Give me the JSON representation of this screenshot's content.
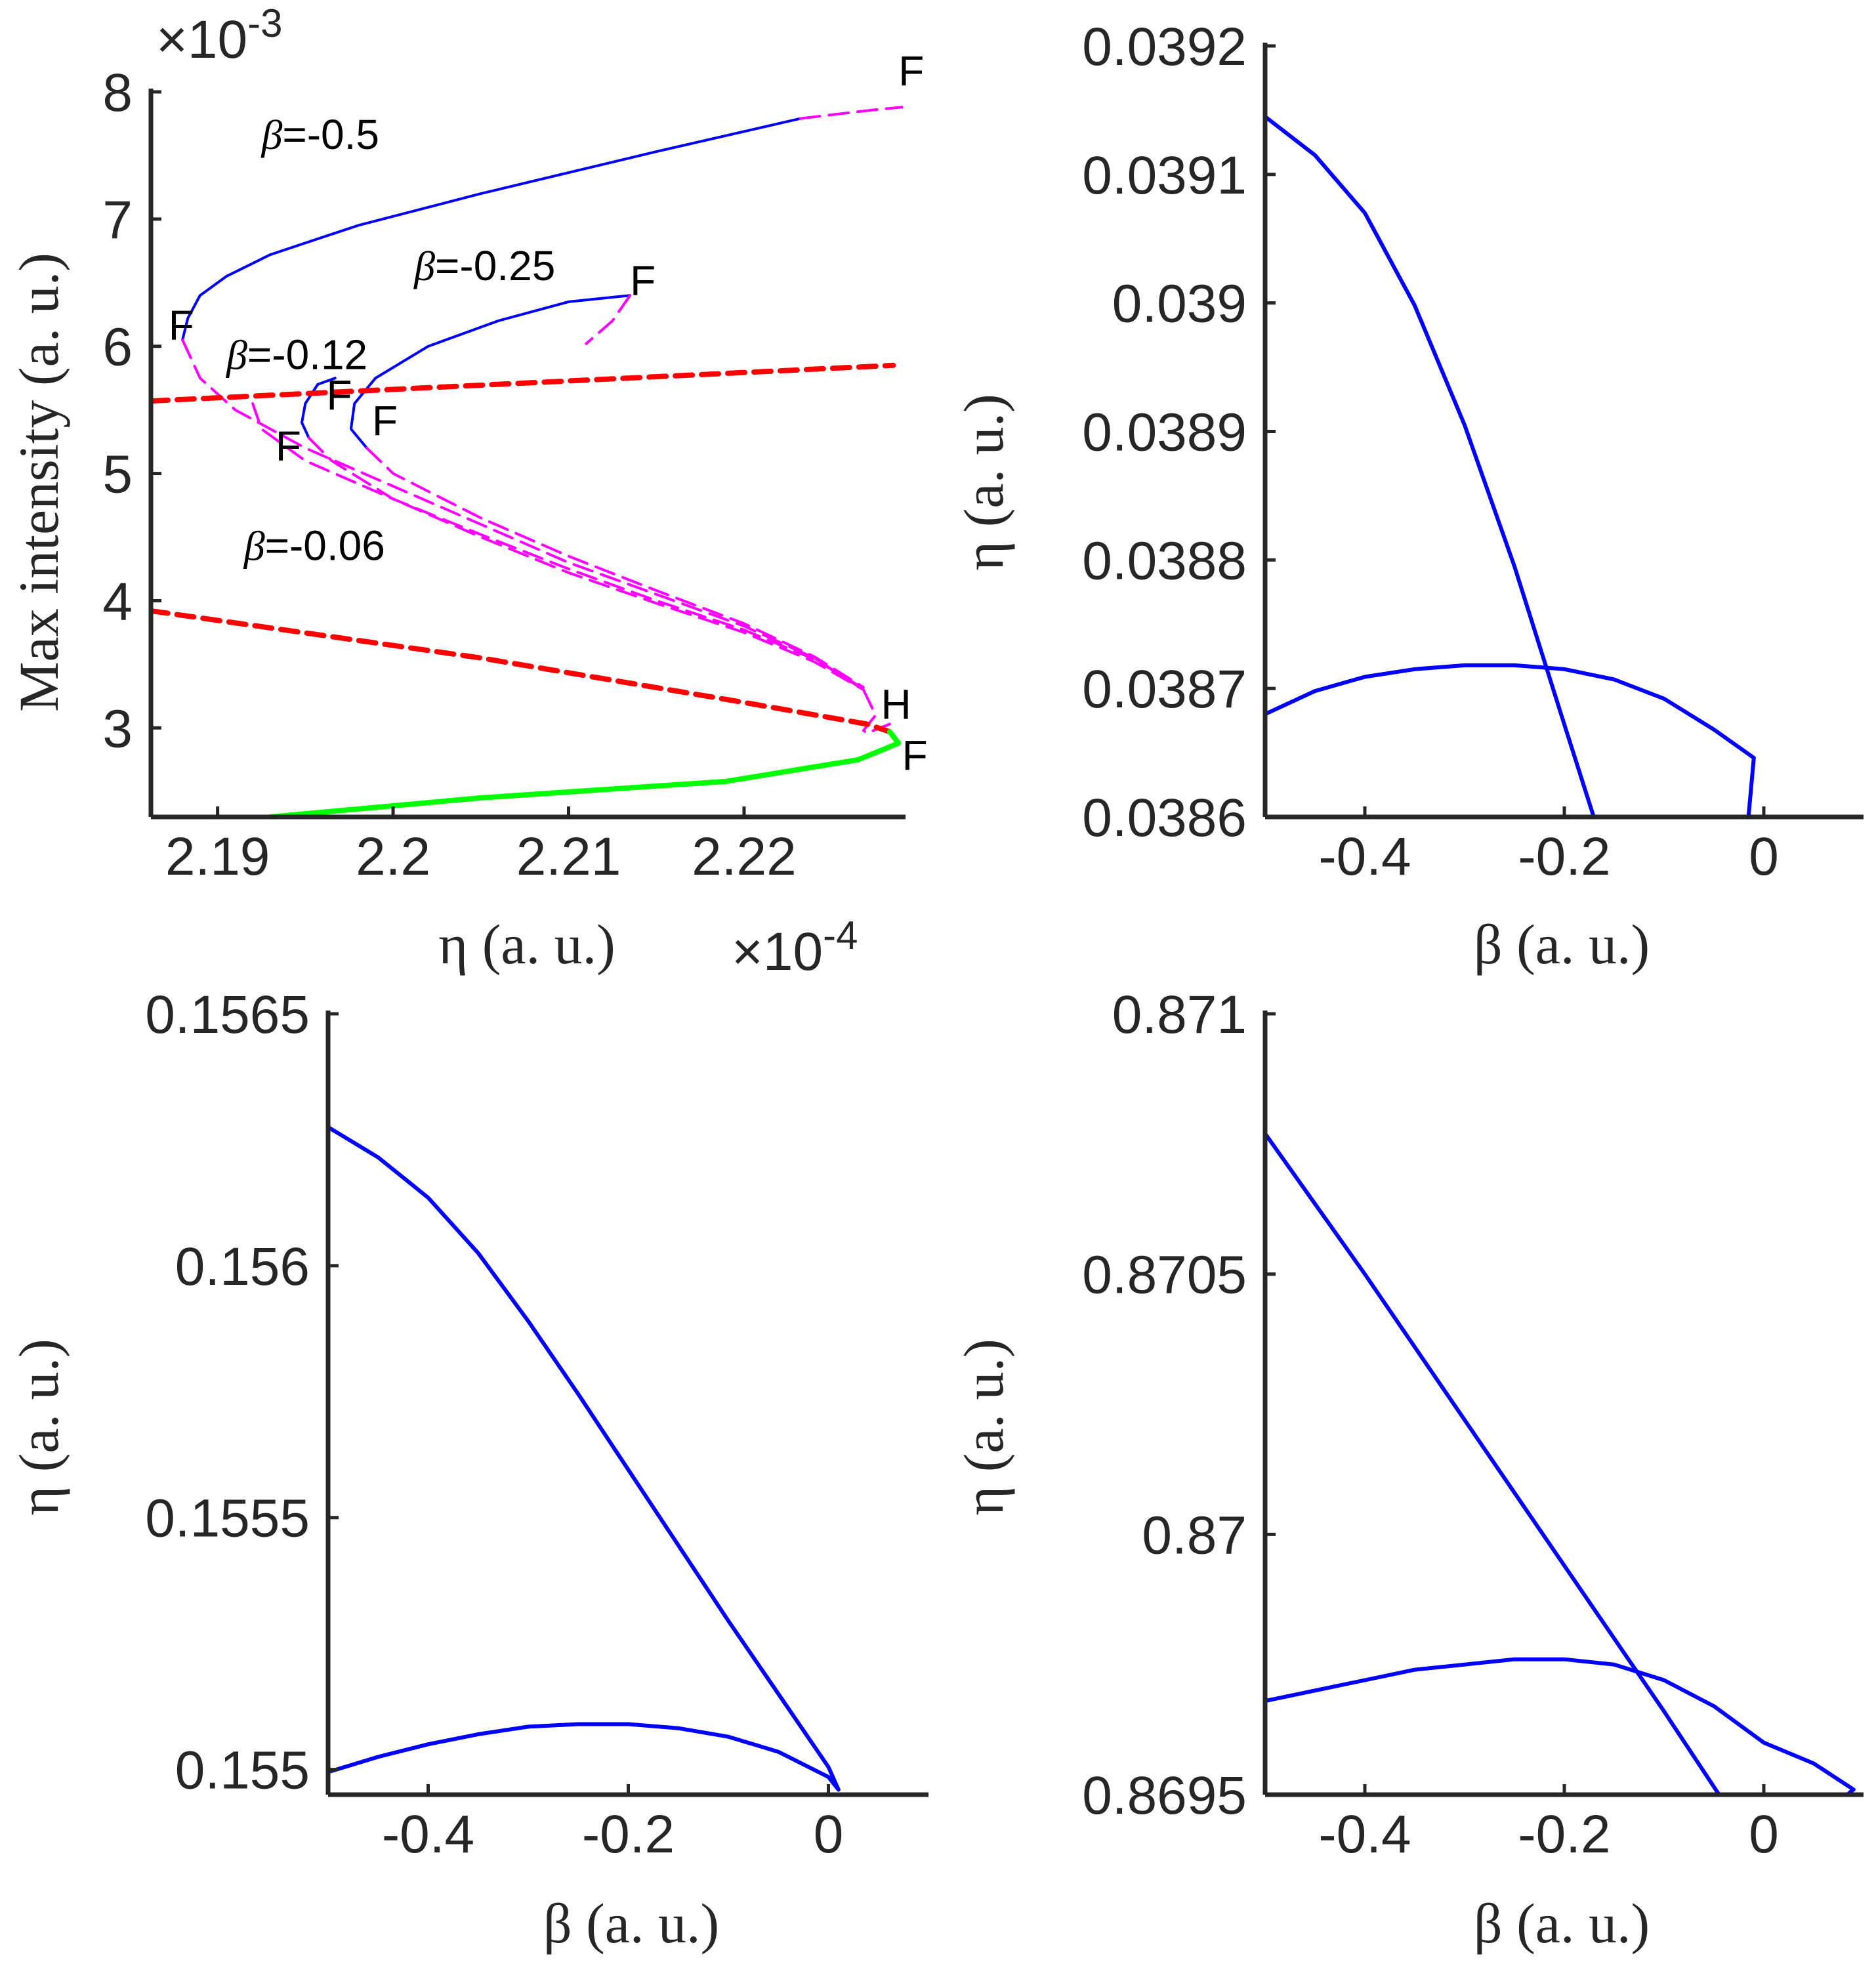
{
  "chart_data": [
    {
      "type": "line",
      "xlabel": "η (a. u.)",
      "ylabel": "Max intensity (a. u.)",
      "x_exponent": "×10",
      "x_exponent_power": "-4",
      "y_exponent": "×10",
      "y_exponent_power": "-3",
      "xlim": [
        2.1862,
        2.2292
      ],
      "ylim": [
        2.3,
        8
      ],
      "xticks": [
        2.19,
        2.2,
        2.21,
        2.22
      ],
      "xtick_labels": [
        "2.19",
        "2.2",
        "2.21",
        "2.22"
      ],
      "yticks": [
        3,
        4,
        5,
        6,
        7,
        8
      ],
      "ytick_labels": [
        "3",
        "4",
        "5",
        "6",
        "7",
        "8"
      ],
      "series": [
        {
          "name": "beta=-0.5 stable",
          "color": "#0000ff",
          "style": "solid",
          "width": 4,
          "x": [
            2.2232,
            2.215,
            2.205,
            2.198,
            2.193,
            2.1905,
            2.189,
            2.1883,
            2.188
          ],
          "y": [
            7.79,
            7.53,
            7.2,
            6.95,
            6.72,
            6.55,
            6.4,
            6.22,
            6.05
          ]
        },
        {
          "name": "beta=-0.5 unstable",
          "color": "#ff00ff",
          "style": "dashed",
          "width": 4,
          "x": [
            2.188,
            2.189,
            2.191,
            2.195,
            2.2,
            2.205,
            2.21,
            2.215,
            2.22,
            2.224,
            2.2268,
            2.2275,
            2.2268,
            2.227,
            2.2283
          ],
          "y": [
            6.05,
            5.75,
            5.5,
            5.2,
            4.9,
            4.6,
            4.3,
            4.05,
            3.8,
            3.55,
            3.3,
            3.1,
            2.98,
            2.96,
            3.03
          ]
        },
        {
          "name": "beta=-0.5 upper unstable",
          "color": "#ff00ff",
          "style": "dashed",
          "width": 4,
          "x": [
            2.2232,
            2.225,
            2.2275,
            2.229
          ],
          "y": [
            7.79,
            7.82,
            7.86,
            7.88
          ]
        },
        {
          "name": "beta=-0.25 stable",
          "color": "#0000ff",
          "style": "solid",
          "width": 4,
          "x": [
            2.2135,
            2.21,
            2.206,
            2.202,
            2.199,
            2.1978,
            2.1976,
            2.1985
          ],
          "y": [
            6.4,
            6.35,
            6.2,
            6.0,
            5.75,
            5.55,
            5.35,
            5.2
          ]
        },
        {
          "name": "beta=-0.25 unstable",
          "color": "#ff00ff",
          "style": "dashed",
          "width": 4,
          "x": [
            2.2135,
            2.2125,
            2.211
          ],
          "y": [
            6.4,
            6.2,
            6.02
          ]
        },
        {
          "name": "beta=-0.25 lower unstable",
          "color": "#ff00ff",
          "style": "dashed",
          "width": 4,
          "x": [
            2.1985,
            2.2,
            2.205,
            2.21,
            2.215,
            2.22,
            2.224,
            2.2268
          ],
          "y": [
            5.2,
            5.0,
            4.65,
            4.35,
            4.08,
            3.82,
            3.56,
            3.32
          ]
        },
        {
          "name": "beta=-0.12 stable",
          "color": "#0000ff",
          "style": "solid",
          "width": 4,
          "x": [
            2.1967,
            2.1957,
            2.195,
            2.1948,
            2.1952
          ],
          "y": [
            5.75,
            5.7,
            5.55,
            5.4,
            5.28
          ]
        },
        {
          "name": "beta=-0.12 unstable",
          "color": "#ff00ff",
          "style": "dashed",
          "width": 4,
          "x": [
            2.1952,
            2.1965,
            2.2,
            2.205,
            2.21,
            2.215,
            2.22,
            2.224,
            2.2268
          ],
          "y": [
            5.28,
            5.1,
            4.8,
            4.5,
            4.22,
            3.98,
            3.75,
            3.52,
            3.3
          ]
        },
        {
          "name": "beta=-0.06 unstable",
          "color": "#ff00ff",
          "style": "dashed",
          "width": 4,
          "x": [
            2.192,
            2.1925,
            2.195,
            2.2,
            2.205,
            2.21,
            2.215,
            2.22,
            2.224,
            2.2268
          ],
          "y": [
            5.55,
            5.35,
            5.1,
            4.8,
            4.52,
            4.25,
            4.0,
            3.77,
            3.54,
            3.31
          ]
        },
        {
          "name": "upper red",
          "color": "#ff0000",
          "style": "dashed",
          "width": 8,
          "x": [
            2.1862,
            2.2285
          ],
          "y": [
            5.57,
            5.85
          ]
        },
        {
          "name": "lower red",
          "color": "#ff0000",
          "style": "dashed",
          "width": 8,
          "x": [
            2.1862,
            2.205,
            2.22,
            2.227,
            2.2283
          ],
          "y": [
            3.92,
            3.55,
            3.2,
            3.03,
            2.97
          ]
        },
        {
          "name": "green",
          "color": "#00ff00",
          "style": "solid",
          "width": 8,
          "x": [
            2.2283,
            2.2288,
            2.2265,
            2.219,
            2.205,
            2.193
          ],
          "y": [
            2.97,
            2.88,
            2.75,
            2.58,
            2.45,
            2.3
          ]
        }
      ],
      "annotations": [
        {
          "prefix": "β",
          "text": "=-0.5",
          "x": 2.1925,
          "y": 7.55
        },
        {
          "prefix": "β",
          "text": "=-0.25",
          "x": 2.2012,
          "y": 6.52
        },
        {
          "prefix": "β",
          "text": "=-0.12",
          "x": 2.1905,
          "y": 5.82
        },
        {
          "prefix": "β",
          "text": "=-0.06",
          "x": 2.1915,
          "y": 4.32
        }
      ],
      "markers": [
        {
          "text": "F",
          "x": 2.2288,
          "y": 8.05
        },
        {
          "text": "F",
          "x": 2.2135,
          "y": 6.4
        },
        {
          "text": "F",
          "x": 2.1872,
          "y": 6.05
        },
        {
          "text": "F",
          "x": 2.1962,
          "y": 5.5
        },
        {
          "text": "F",
          "x": 2.1988,
          "y": 5.3
        },
        {
          "text": "F",
          "x": 2.1933,
          "y": 5.1
        },
        {
          "text": "H",
          "x": 2.2278,
          "y": 3.07
        },
        {
          "text": "F",
          "x": 2.229,
          "y": 2.67
        }
      ]
    },
    {
      "type": "line",
      "xlabel": "β (a. u.)",
      "ylabel": "η (a. u.)",
      "xlim": [
        -0.5,
        0.1
      ],
      "ylim": [
        0.0386,
        0.0392
      ],
      "xticks": [
        -0.4,
        -0.2,
        0
      ],
      "xtick_labels": [
        "-0.4",
        "-0.2",
        "0"
      ],
      "yticks": [
        0.0386,
        0.0387,
        0.0388,
        0.0389,
        0.039,
        0.0391,
        0.0392
      ],
      "ytick_labels": [
        "0.0386",
        "0.0387",
        "0.0388",
        "0.0389",
        "0.039",
        "0.0391",
        "0.0392"
      ],
      "series": [
        {
          "name": "upper branch",
          "color": "#0000ff",
          "style": "solid",
          "width": 6,
          "x": [
            -0.5,
            -0.45,
            -0.4,
            -0.35,
            -0.3,
            -0.25,
            -0.2,
            -0.15,
            -0.1,
            -0.05,
            -0.01
          ],
          "y": [
            0.039145,
            0.039115,
            0.03907,
            0.038998,
            0.038905,
            0.038795,
            0.038672,
            0.03855,
            0.038427,
            0.038303,
            0.038646
          ]
        },
        {
          "name": "lower branch",
          "color": "#0000ff",
          "style": "solid",
          "width": 6,
          "x": [
            -0.5,
            -0.45,
            -0.4,
            -0.35,
            -0.3,
            -0.25,
            -0.2,
            -0.15,
            -0.1,
            -0.05,
            -0.01
          ],
          "y": [
            0.03868,
            0.038698,
            0.038709,
            0.038715,
            0.038718,
            0.038718,
            0.038715,
            0.038707,
            0.038692,
            0.038668,
            0.038646
          ]
        }
      ]
    },
    {
      "type": "line",
      "xlabel": "β (a. u.)",
      "ylabel": "η (a. u.)",
      "xlim": [
        -0.5,
        0.1
      ],
      "ylim": [
        0.15495,
        0.1565
      ],
      "xticks": [
        -0.4,
        -0.2,
        0
      ],
      "xtick_labels": [
        "-0.4",
        "-0.2",
        "0"
      ],
      "yticks": [
        0.155,
        0.1555,
        0.156,
        0.1565
      ],
      "ytick_labels": [
        "0.155",
        "0.1555",
        "0.156",
        "0.1565"
      ],
      "series": [
        {
          "name": "upper branch",
          "color": "#0000ff",
          "style": "solid",
          "width": 6,
          "x": [
            -0.5,
            -0.45,
            -0.4,
            -0.35,
            -0.3,
            -0.25,
            -0.2,
            -0.15,
            -0.1,
            -0.05,
            0.0,
            0.01
          ],
          "y": [
            0.156275,
            0.156215,
            0.156135,
            0.156025,
            0.15589,
            0.155745,
            0.155595,
            0.155445,
            0.155295,
            0.15515,
            0.155005,
            0.15496
          ]
        },
        {
          "name": "lower branch",
          "color": "#0000ff",
          "style": "solid",
          "width": 6,
          "x": [
            -0.5,
            -0.45,
            -0.4,
            -0.35,
            -0.3,
            -0.25,
            -0.2,
            -0.15,
            -0.1,
            -0.05,
            0.0,
            0.01
          ],
          "y": [
            0.154995,
            0.155025,
            0.15505,
            0.15507,
            0.155085,
            0.15509,
            0.15509,
            0.155082,
            0.155065,
            0.155035,
            0.154985,
            0.15496
          ]
        }
      ]
    },
    {
      "type": "line",
      "xlabel": "β (a. u.)",
      "ylabel": "η (a. u.)",
      "xlim": [
        -0.5,
        0.1
      ],
      "ylim": [
        0.8695,
        0.871
      ],
      "xticks": [
        -0.4,
        -0.2,
        0
      ],
      "xtick_labels": [
        "-0.4",
        "-0.2",
        "0"
      ],
      "yticks": [
        0.8695,
        0.87,
        0.8705,
        0.871
      ],
      "ytick_labels": [
        "0.8695",
        "0.87",
        "0.8705",
        "0.871"
      ],
      "series": [
        {
          "name": "upper branch",
          "color": "#0000ff",
          "style": "solid",
          "width": 6,
          "x": [
            -0.5,
            -0.4,
            -0.3,
            -0.2,
            -0.1,
            0.0,
            0.09
          ],
          "y": [
            0.87077,
            0.8705,
            0.87022,
            0.86994,
            0.86966,
            0.86937,
            0.86951
          ]
        },
        {
          "name": "lower branch",
          "color": "#0000ff",
          "style": "solid",
          "width": 6,
          "x": [
            -0.5,
            -0.45,
            -0.4,
            -0.35,
            -0.3,
            -0.25,
            -0.2,
            -0.15,
            -0.1,
            -0.05,
            0.0,
            0.05,
            0.09
          ],
          "y": [
            0.86968,
            0.8697,
            0.86972,
            0.86974,
            0.86975,
            0.86976,
            0.86976,
            0.86975,
            0.86972,
            0.86967,
            0.8696,
            0.86956,
            0.86951
          ]
        }
      ]
    }
  ]
}
